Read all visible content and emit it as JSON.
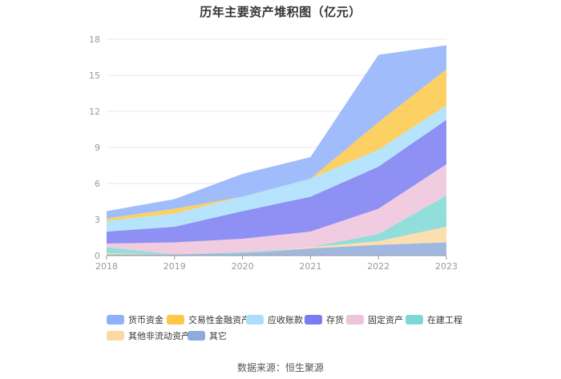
{
  "title": "历年主要资产堆积图（亿元）",
  "source": "数据来源：恒生聚源",
  "chart_data": {
    "type": "area",
    "stacked": true,
    "categories": [
      "2018",
      "2019",
      "2020",
      "2021",
      "2022",
      "2023"
    ],
    "ylim": [
      0,
      18
    ],
    "yticks": [
      "0",
      "3",
      "6",
      "9",
      "12",
      "15",
      "18"
    ],
    "grid": true,
    "legend_position": "bottom",
    "series": [
      {
        "name": "其它",
        "color": "#8faadc",
        "values": [
          0.1,
          0.1,
          0.2,
          0.6,
          0.9,
          1.1
        ]
      },
      {
        "name": "其他非流动资产",
        "color": "#fcd9a0",
        "values": [
          0.1,
          0.0,
          0.0,
          0.1,
          0.3,
          1.3
        ]
      },
      {
        "name": "在建工程",
        "color": "#7fd8d5",
        "values": [
          0.5,
          0.0,
          0.1,
          0.0,
          0.6,
          2.6
        ]
      },
      {
        "name": "固定资产",
        "color": "#eec3dc",
        "values": [
          0.3,
          1.0,
          1.1,
          1.3,
          2.1,
          2.6
        ]
      },
      {
        "name": "存货",
        "color": "#7b7cf1",
        "values": [
          1.0,
          1.3,
          2.3,
          2.9,
          3.5,
          3.7
        ]
      },
      {
        "name": "应收账款",
        "color": "#a9dffb",
        "values": [
          0.9,
          1.1,
          1.2,
          1.5,
          1.4,
          1.2
        ]
      },
      {
        "name": "交易性金融资产",
        "color": "#fdc848",
        "values": [
          0.2,
          0.4,
          0.0,
          0.0,
          2.3,
          3.0
        ]
      },
      {
        "name": "货币资金",
        "color": "#8fb0fa",
        "values": [
          0.6,
          0.8,
          1.9,
          1.8,
          5.6,
          2.0
        ]
      }
    ],
    "legend_order": [
      "货币资金",
      "交易性金融资产",
      "应收账款",
      "存货",
      "固定资产",
      "在建工程",
      "其他非流动资产",
      "其它"
    ]
  }
}
